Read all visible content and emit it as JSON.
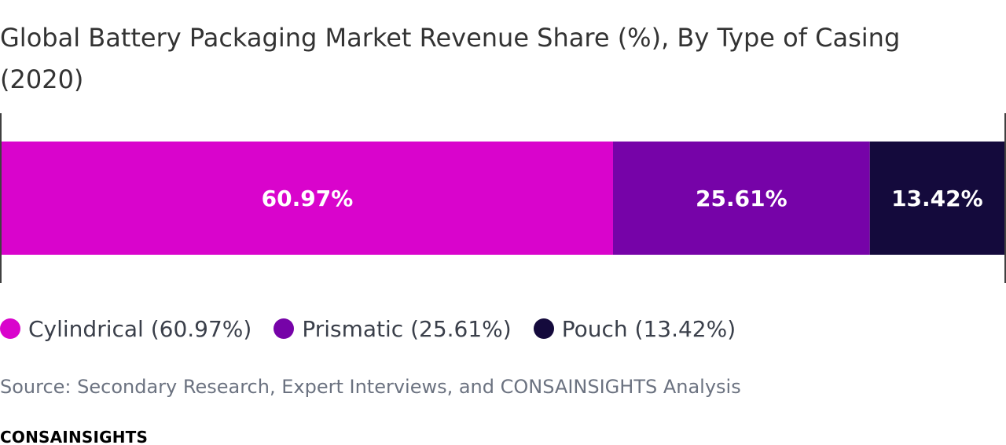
{
  "chart_data": {
    "type": "bar",
    "orientation": "horizontal-stacked",
    "title": "Global Battery Packaging Market Revenue Share (%), By Type of Casing (2020)",
    "xlabel": "",
    "ylabel": "",
    "xlim": [
      0,
      100
    ],
    "grid": false,
    "legend": "bottom-left",
    "series": [
      {
        "name": "Cylindrical",
        "value": 60.97,
        "label": "60.97%",
        "legend_label": "Cylindrical (60.97%)",
        "color": "#d904cc"
      },
      {
        "name": "Prismatic",
        "value": 25.61,
        "label": "25.61%",
        "legend_label": "Prismatic (25.61%)",
        "color": "#7603a8"
      },
      {
        "name": "Pouch",
        "value": 13.42,
        "label": "13.42%",
        "legend_label": "Pouch (13.42%)",
        "color": "#140a3c"
      }
    ]
  },
  "source": "Source: Secondary Research, Expert Interviews, and CONSAINSIGHTS Analysis",
  "brand": "CONSAINSIGHTS"
}
